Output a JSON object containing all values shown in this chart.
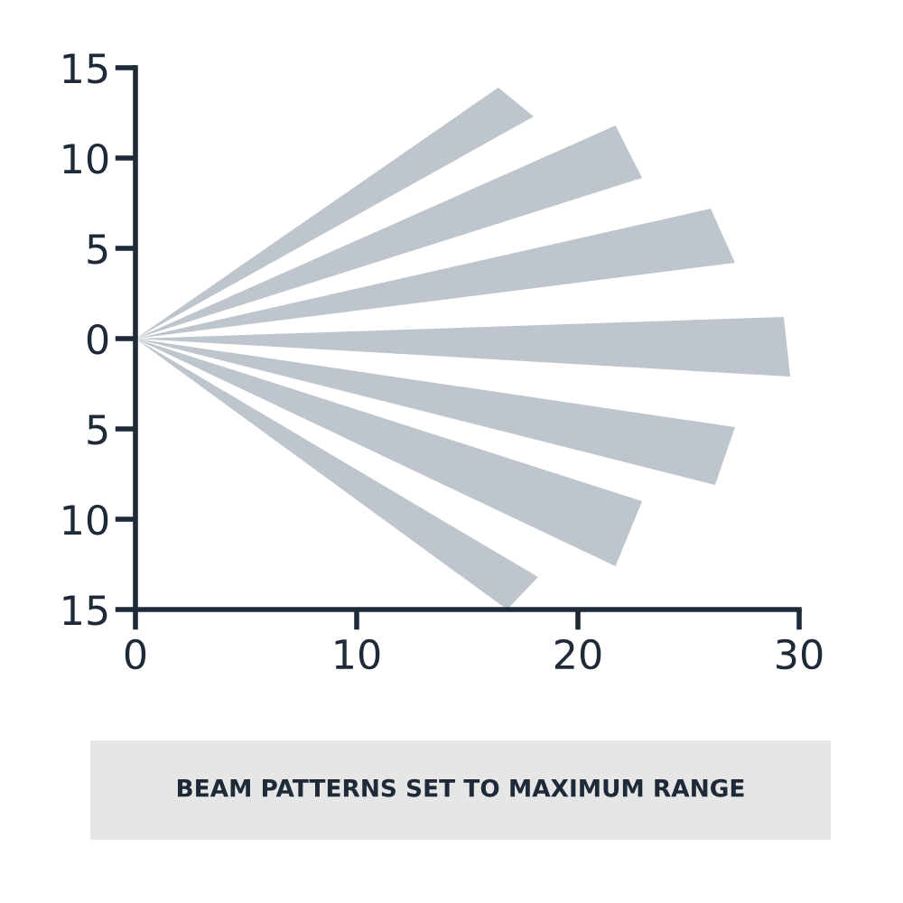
{
  "chart_data": {
    "type": "area",
    "series": [
      {
        "color": "#bec5cc",
        "x": [
          0,
          16.4,
          18.0,
          0
        ],
        "values": [
          0,
          13.9,
          12.3,
          0
        ]
      },
      {
        "color": "#bec5cc",
        "x": [
          0,
          21.7,
          22.9,
          0
        ],
        "values": [
          0,
          11.8,
          8.9,
          0
        ]
      },
      {
        "color": "#bec5cc",
        "x": [
          0,
          26.0,
          27.1,
          0
        ],
        "values": [
          0,
          7.2,
          4.2,
          0
        ]
      },
      {
        "color": "#bec5cc",
        "x": [
          0,
          29.3,
          29.6,
          0
        ],
        "values": [
          0,
          1.2,
          -2.1,
          0
        ]
      },
      {
        "color": "#bec5cc",
        "x": [
          0,
          27.1,
          26.2,
          0
        ],
        "values": [
          0,
          -4.9,
          -8.1,
          0
        ]
      },
      {
        "color": "#bec5cc",
        "x": [
          0,
          22.9,
          21.7,
          0
        ],
        "values": [
          0,
          -9.0,
          -12.6,
          0
        ]
      },
      {
        "color": "#bec5cc",
        "x": [
          0,
          18.2,
          16.8,
          0
        ],
        "values": [
          0,
          -13.2,
          -15.0,
          0
        ]
      }
    ],
    "xlim": [
      0,
      30
    ],
    "xticks": [
      0,
      10,
      20,
      30
    ],
    "ylim": [
      -15,
      15
    ],
    "yticks": [
      {
        "value": -15,
        "label": "15"
      },
      {
        "value": -10,
        "label": "10"
      },
      {
        "value": -5,
        "label": "5"
      },
      0,
      5,
      10,
      15
    ],
    "grid": false,
    "annotations": [
      "BEAM PATTERNS SET TO MAXIMUM RANGE"
    ]
  }
}
